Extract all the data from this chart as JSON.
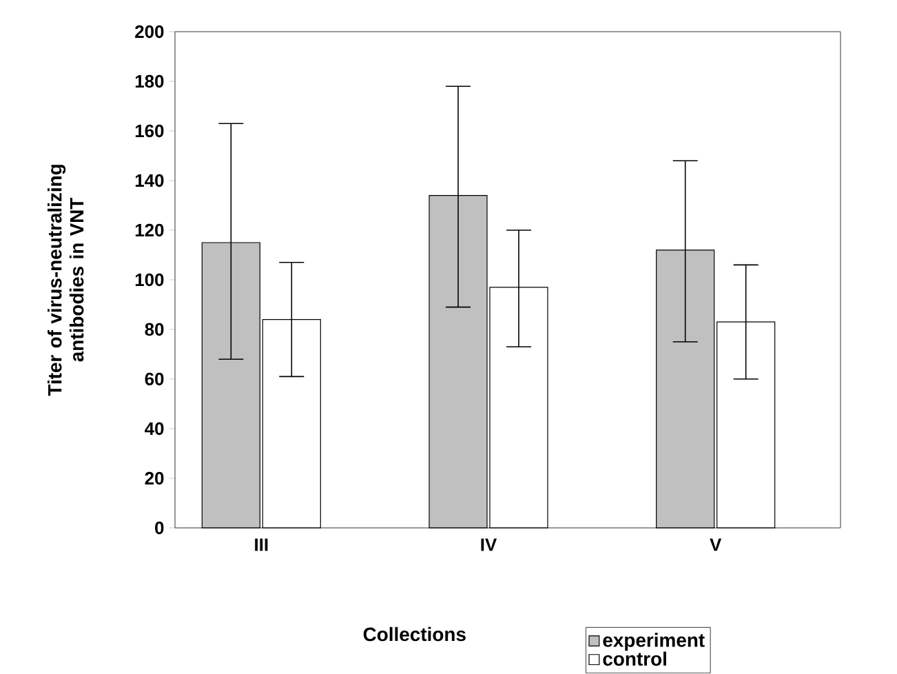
{
  "chart_data": {
    "type": "bar",
    "xlabel": "Collections",
    "ylabel": "Titer of virus-neutralizing antibodies in VNT",
    "categories": [
      "III",
      "IV",
      "V"
    ],
    "series": [
      {
        "name": "experiment",
        "color": "#c0c0c0",
        "values": [
          115,
          134,
          112
        ],
        "errors": [
          [
            68,
            163
          ],
          [
            89,
            178
          ],
          [
            75,
            148
          ]
        ]
      },
      {
        "name": "control",
        "color": "#ffffff",
        "values": [
          84,
          97,
          83
        ],
        "errors": [
          [
            61,
            107
          ],
          [
            73,
            120
          ],
          [
            60,
            106
          ]
        ]
      }
    ],
    "ylim": [
      0,
      200
    ],
    "yticks": [
      0,
      20,
      40,
      60,
      80,
      100,
      120,
      140,
      160,
      180,
      200
    ],
    "grid": false,
    "legend": "bottom right"
  }
}
